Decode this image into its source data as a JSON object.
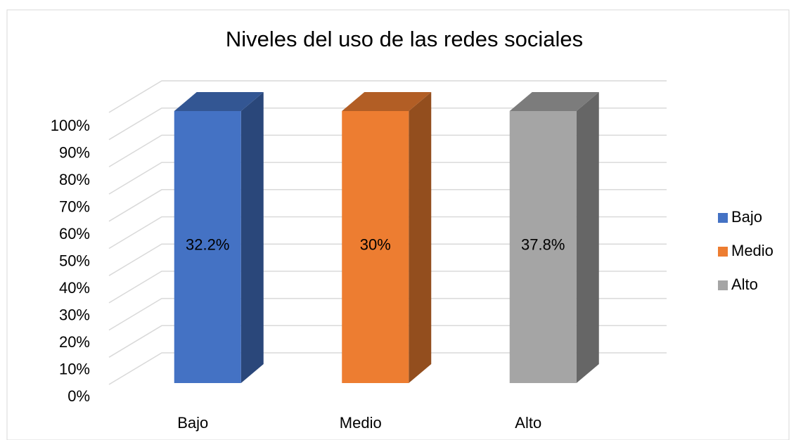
{
  "chart_data": {
    "type": "bar",
    "stacked": "percent",
    "three_d": true,
    "title": "Niveles del uso de las redes sociales",
    "categories": [
      "Bajo",
      "Medio",
      "Alto"
    ],
    "series": [
      {
        "name": "Bajo",
        "color": "#4472c4",
        "values": [
          32.2,
          null,
          null
        ],
        "value_labels": [
          "32.2%",
          null,
          null
        ]
      },
      {
        "name": "Medio",
        "color": "#ed7d31",
        "values": [
          null,
          30,
          null
        ],
        "value_labels": [
          null,
          "30%",
          null
        ]
      },
      {
        "name": "Alto",
        "color": "#a5a5a5",
        "values": [
          null,
          null,
          37.8
        ],
        "value_labels": [
          null,
          null,
          "37.8%"
        ]
      }
    ],
    "ylim": [
      0,
      100
    ],
    "yticks": [
      {
        "value": 0,
        "label": "0%"
      },
      {
        "value": 10,
        "label": "10%"
      },
      {
        "value": 20,
        "label": "20%"
      },
      {
        "value": 30,
        "label": "30%"
      },
      {
        "value": 40,
        "label": "40%"
      },
      {
        "value": 50,
        "label": "50%"
      },
      {
        "value": 60,
        "label": "60%"
      },
      {
        "value": 70,
        "label": "70%"
      },
      {
        "value": 80,
        "label": "80%"
      },
      {
        "value": 90,
        "label": "90%"
      },
      {
        "value": 100,
        "label": "100%"
      }
    ],
    "grid": true,
    "legend": "right"
  }
}
